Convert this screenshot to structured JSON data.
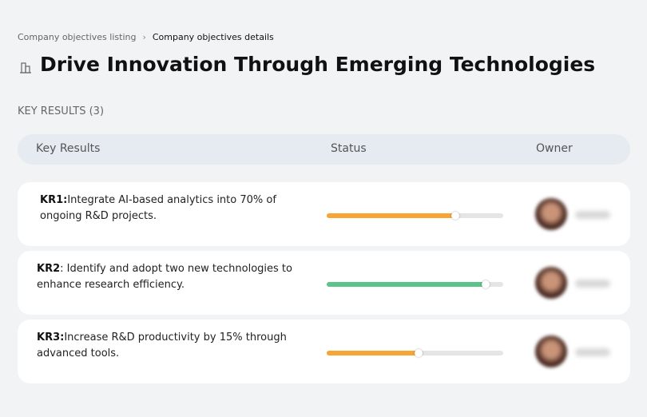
{
  "breadcrumb": {
    "parent": "Company objectives listing",
    "current": "Company objectives details"
  },
  "header": {
    "title": "Drive Innovation Through Emerging Technologies"
  },
  "section_title": "KEY RESULTS (3)",
  "table": {
    "columns": [
      "Key Results",
      "Status",
      "Owner"
    ],
    "rows": [
      {
        "id": "KR1:",
        "text": "Integrate AI-based analytics into 70% of ongoing R&D projects.",
        "progress": 73,
        "color": "#f7a535"
      },
      {
        "id": "KR2",
        "text": ": Identify and adopt two new technologies to enhance research efficiency.",
        "progress": 90,
        "color": "#5cc48a"
      },
      {
        "id": "KR3:",
        "text": "Increase R&D productivity by 15% through advanced tools.",
        "progress": 52,
        "color": "#f7a535"
      }
    ]
  }
}
